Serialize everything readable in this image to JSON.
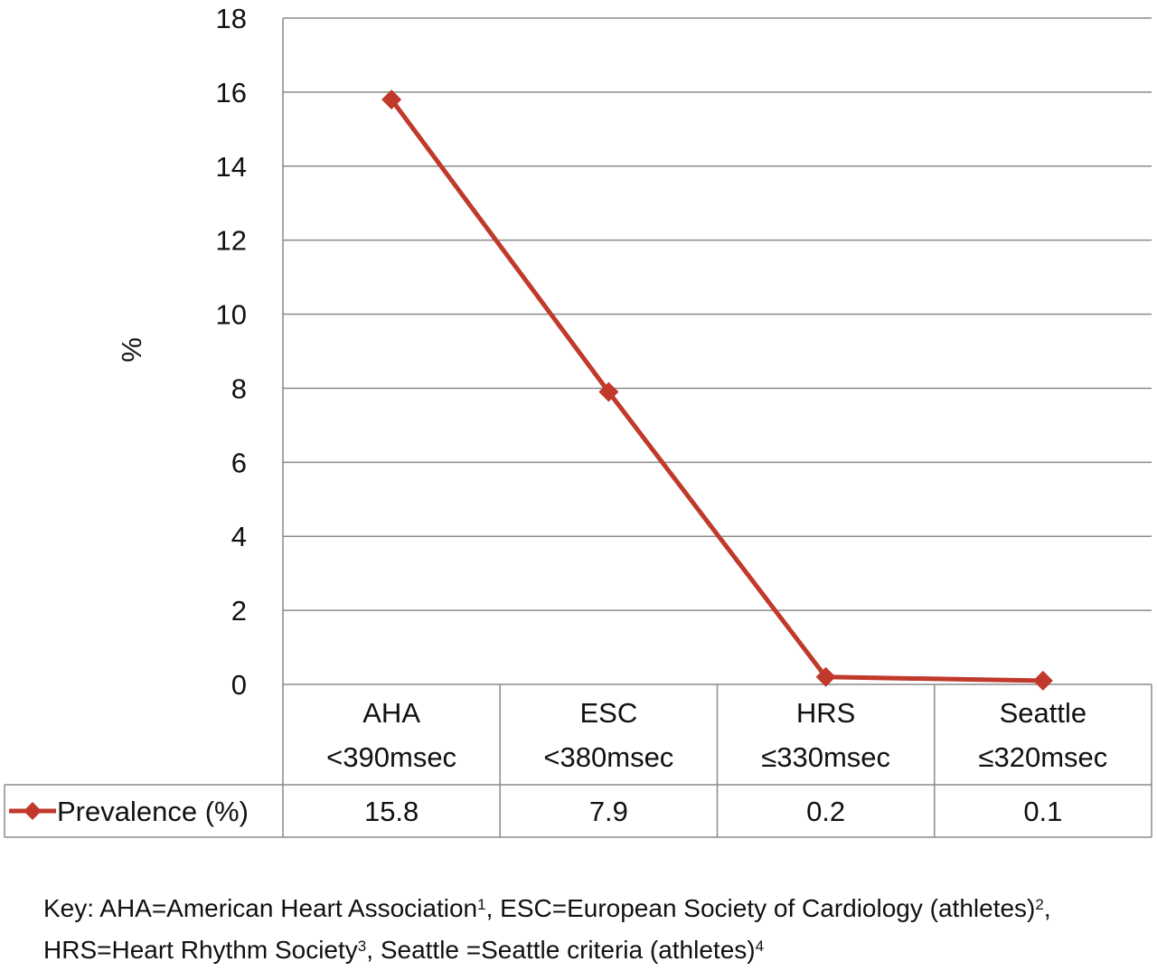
{
  "chart_data": {
    "type": "line",
    "ylabel": "%",
    "ylim": [
      0,
      18
    ],
    "yticks": [
      0,
      2,
      4,
      6,
      8,
      10,
      12,
      14,
      16,
      18
    ],
    "grid": true,
    "categories": [
      {
        "line1": "AHA",
        "line2": "<390msec"
      },
      {
        "line1": "ESC",
        "line2": "<380msec"
      },
      {
        "line1": "HRS",
        "line2": "≤330msec"
      },
      {
        "line1": "Seattle",
        "line2": "≤320msec"
      }
    ],
    "series": [
      {
        "name": "Prevalence (%)",
        "values": [
          15.8,
          7.9,
          0.2,
          0.1
        ],
        "value_labels": [
          "15.8",
          "7.9",
          "0.2",
          "0.1"
        ],
        "color": "#c0392b"
      }
    ],
    "legend": "data-table"
  },
  "key": {
    "prefix": "Key: AHA=American Heart Association",
    "ref1": "1",
    "part2": ", ESC=European Society of Cardiology (athletes)",
    "ref2": "2",
    "part3": ", HRS=Heart Rhythm Society",
    "ref3": "3",
    "part4": ", Seattle =Seattle criteria (athletes)",
    "ref4": "4"
  }
}
